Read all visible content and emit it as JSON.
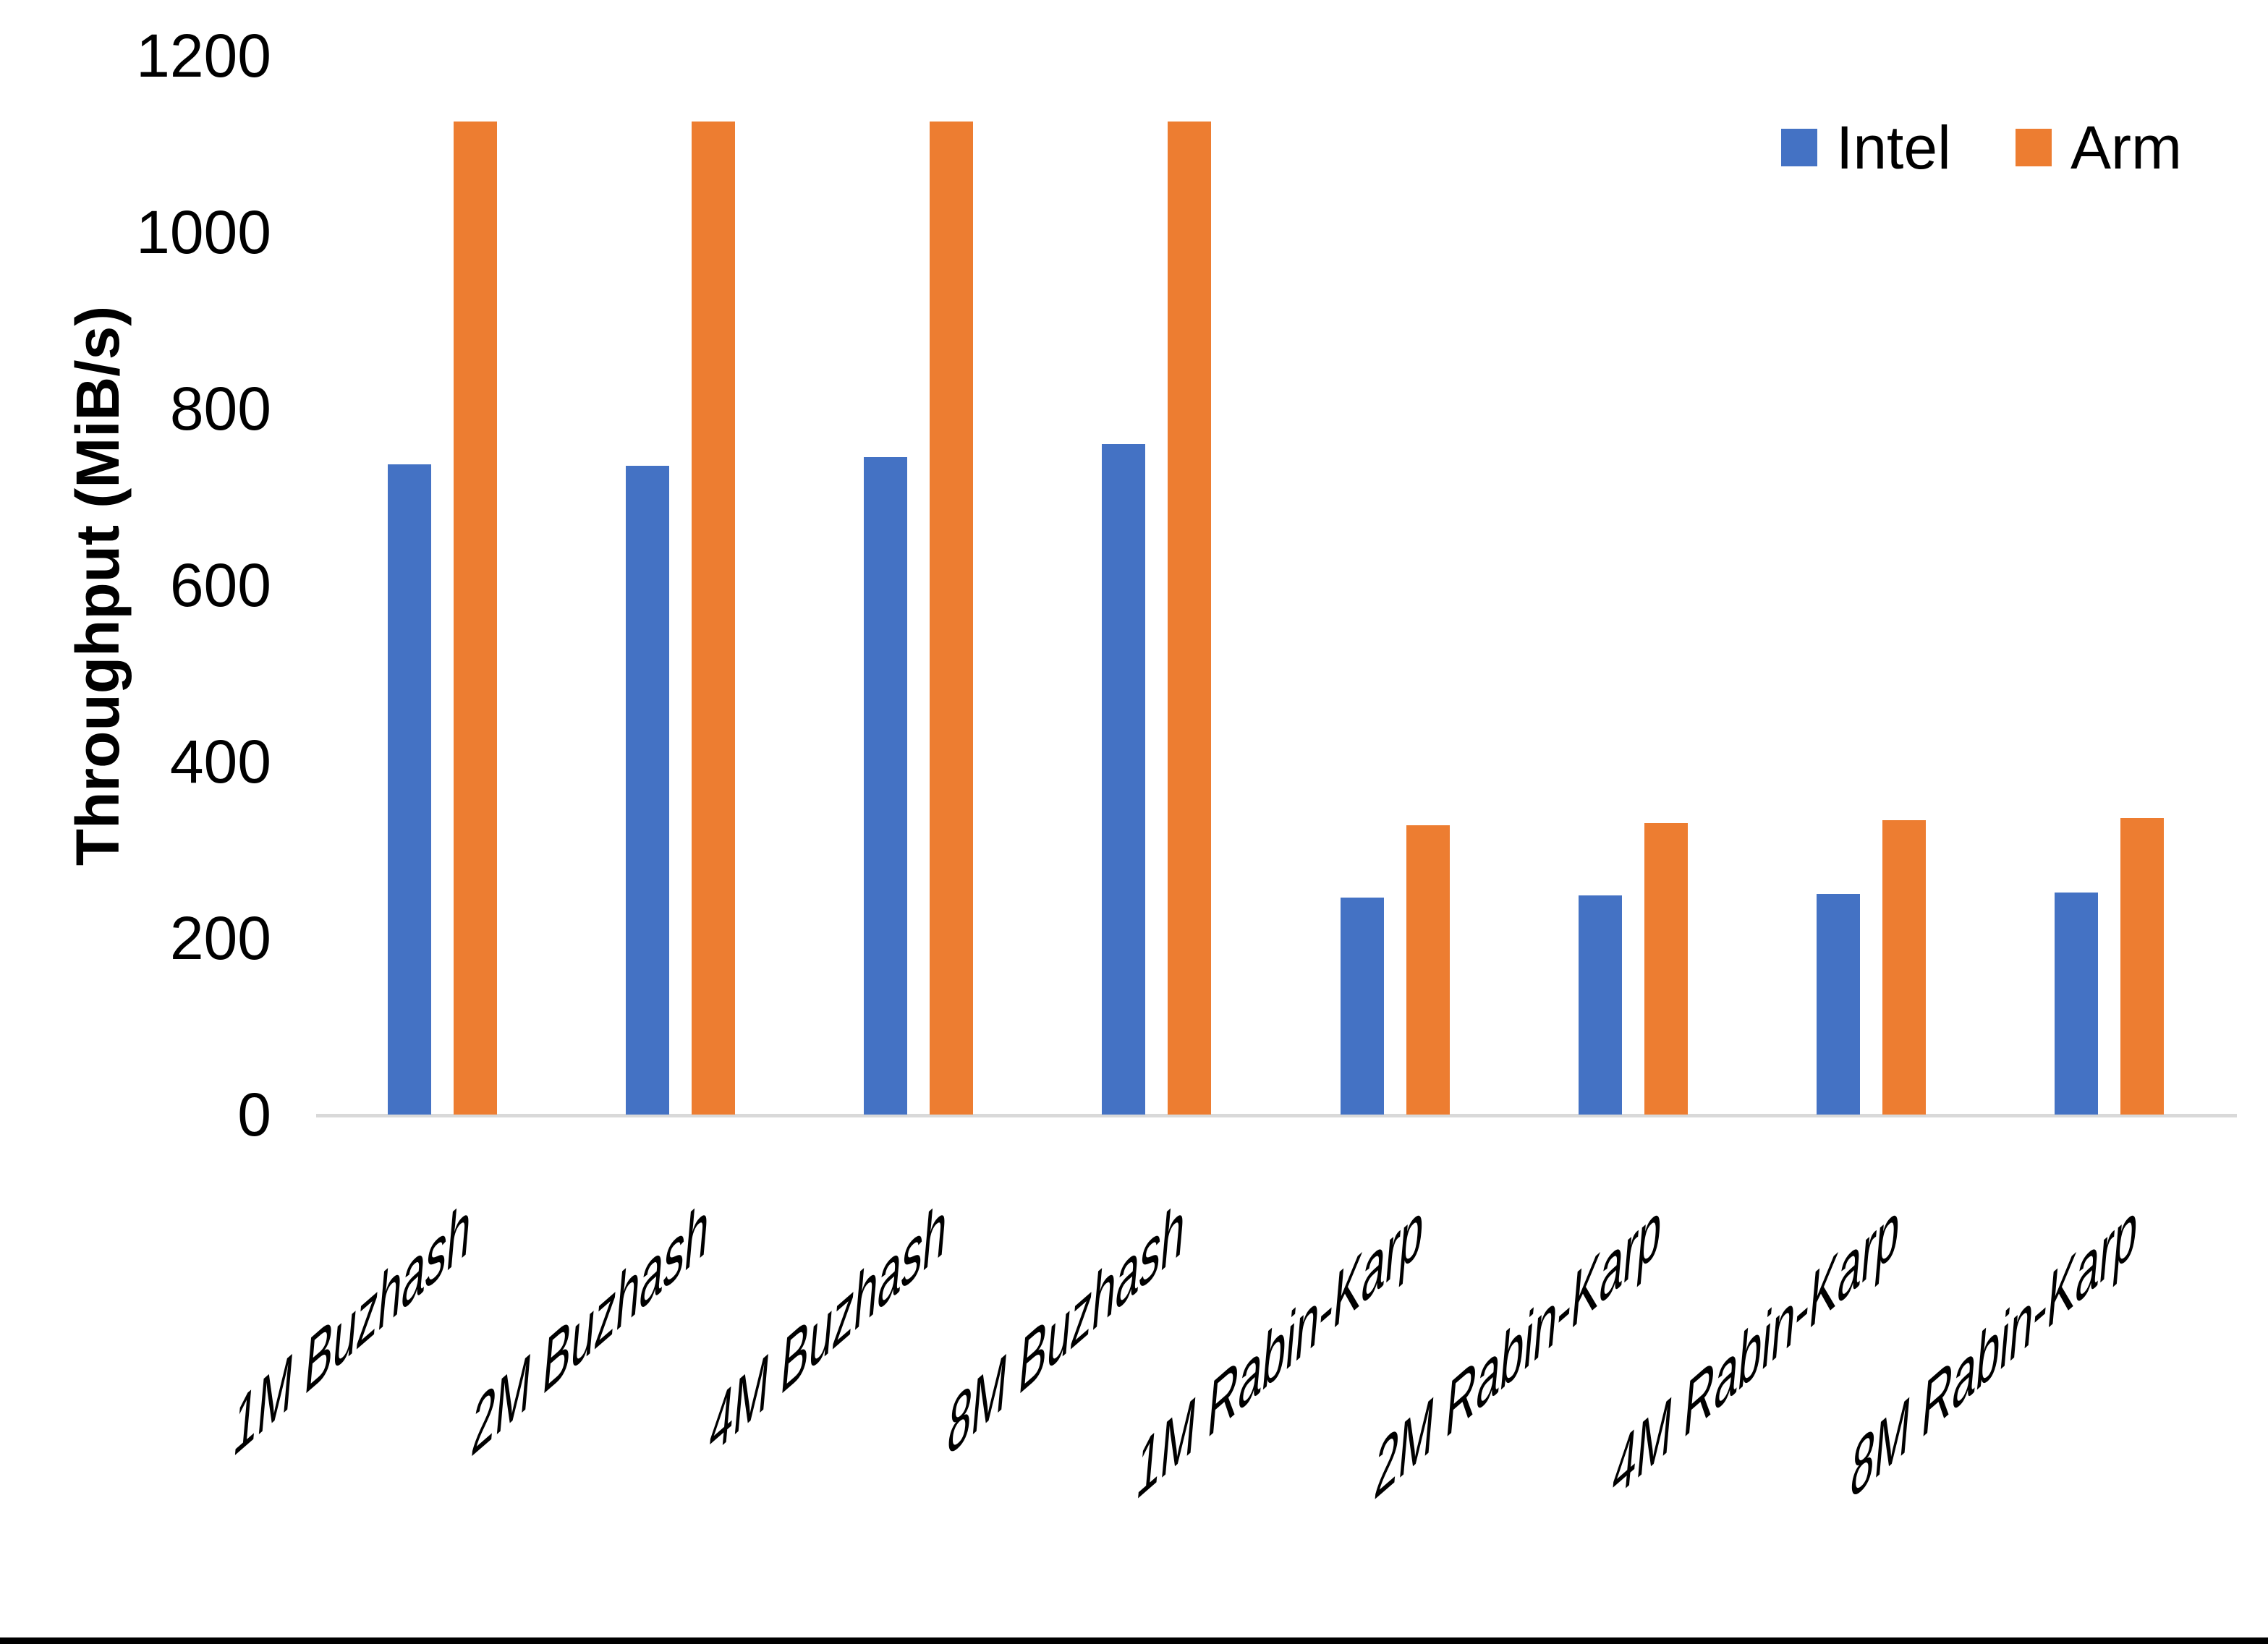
{
  "chart_data": {
    "type": "bar",
    "title": "",
    "ylabel": "Throughput (MiB/s)",
    "xlabel": "",
    "ylim": [
      0,
      1200
    ],
    "yticks": [
      0,
      200,
      400,
      600,
      800,
      1000,
      1200
    ],
    "grid": false,
    "legend_position": "top-right",
    "categories": [
      "1M Buzhash",
      "2M Buzhash",
      "4M Buzhash",
      "8M Buzhash",
      "1M Rabin-Karp",
      "2M Rabin-Karp",
      "4M Rabin-Karp",
      "8M Rabin-Karp"
    ],
    "series": [
      {
        "name": "Intel",
        "color": "#4472C4",
        "values": [
          737,
          735,
          745,
          760,
          246,
          248,
          250,
          252
        ]
      },
      {
        "name": "Arm",
        "color": "#ED7D31",
        "values": [
          1125,
          1125,
          1125,
          1125,
          328,
          330,
          334,
          336
        ]
      }
    ],
    "axis_line_color": "#d9d9d9",
    "text_color": "#000000"
  }
}
